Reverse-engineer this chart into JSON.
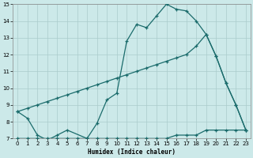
{
  "xlabel": "Humidex (Indice chaleur)",
  "xlim": [
    -0.5,
    23.5
  ],
  "ylim": [
    7,
    15
  ],
  "xticks": [
    0,
    1,
    2,
    3,
    4,
    5,
    6,
    7,
    8,
    9,
    10,
    11,
    12,
    13,
    14,
    15,
    16,
    17,
    18,
    19,
    20,
    21,
    22,
    23
  ],
  "yticks": [
    7,
    8,
    9,
    10,
    11,
    12,
    13,
    14,
    15
  ],
  "bg_color": "#cce9e9",
  "grid_color": "#aacccc",
  "line_color": "#1a6b6b",
  "curve1_x": [
    0,
    1,
    2,
    3,
    4,
    5,
    7,
    8,
    9,
    10,
    11,
    12,
    13,
    14,
    15,
    16,
    17,
    18,
    19,
    20,
    21,
    22,
    23
  ],
  "curve1_y": [
    8.6,
    8.2,
    7.2,
    6.9,
    7.2,
    7.5,
    7.0,
    7.9,
    9.3,
    9.7,
    12.8,
    13.8,
    13.6,
    14.3,
    15.0,
    14.7,
    14.6,
    14.0,
    13.2,
    11.9,
    10.3,
    9.0,
    7.5
  ],
  "curve2_x": [
    0,
    1,
    2,
    3,
    4,
    5,
    6,
    7,
    8,
    9,
    10,
    11,
    12,
    13,
    14,
    15,
    16,
    17,
    18,
    19,
    20,
    21,
    22,
    23
  ],
  "curve2_y": [
    8.6,
    8.8,
    9.0,
    9.2,
    9.4,
    9.6,
    9.8,
    10.0,
    10.2,
    10.4,
    10.6,
    10.8,
    11.0,
    11.2,
    11.4,
    11.6,
    11.8,
    12.0,
    12.5,
    13.2,
    11.9,
    10.3,
    9.0,
    7.5
  ],
  "curve3_x": [
    0,
    1,
    2,
    3,
    4,
    5,
    6,
    7,
    8,
    9,
    10,
    11,
    12,
    13,
    14,
    15,
    16,
    17,
    18,
    19,
    20,
    21,
    22,
    23
  ],
  "curve3_y": [
    7.0,
    7.0,
    7.0,
    7.0,
    7.0,
    7.0,
    7.0,
    7.0,
    7.0,
    7.0,
    7.0,
    7.0,
    7.0,
    7.0,
    7.0,
    7.0,
    7.2,
    7.2,
    7.2,
    7.5,
    7.5,
    7.5,
    7.5,
    7.5
  ]
}
